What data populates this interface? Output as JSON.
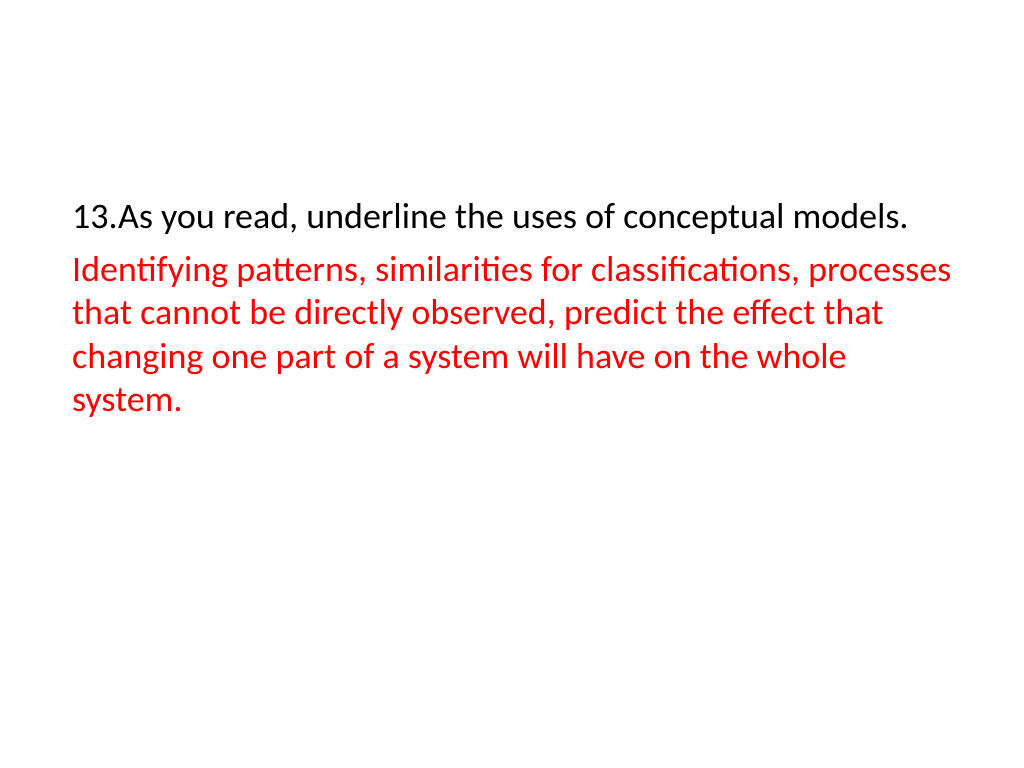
{
  "slide": {
    "question_number": "13.",
    "question_text": "As you read, underline the uses of conceptual models.",
    "answer_text": "Identifying patterns, similarities for classifications, processes that cannot be directly observed, predict the effect that changing one part of a system will have on the whole system.",
    "colors": {
      "background": "#ffffff",
      "question_color": "#000000",
      "answer_color": "#ff0000"
    },
    "typography": {
      "font_family": "Calibri",
      "font_size_pt": 28,
      "line_height": 1.2
    }
  }
}
